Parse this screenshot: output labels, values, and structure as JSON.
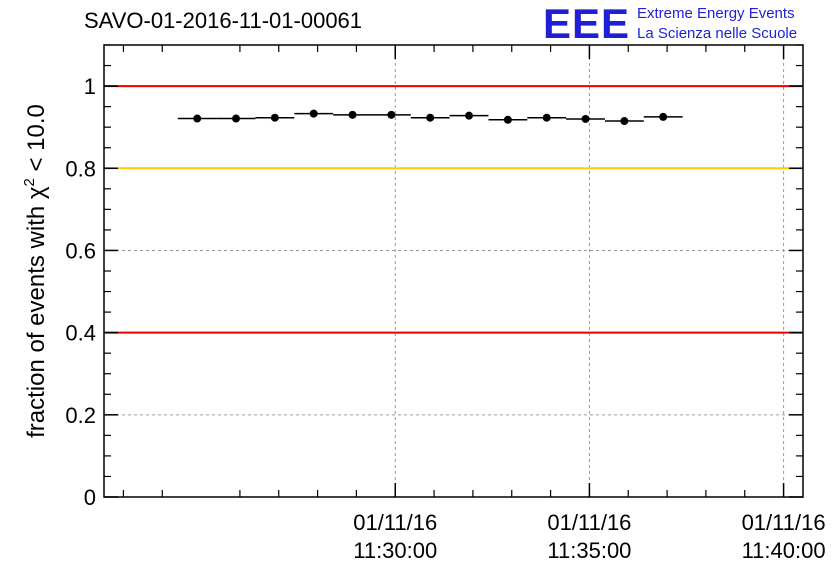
{
  "chart_data": {
    "type": "scatter",
    "title": "SAVO-01-2016-11-01-00061",
    "ylabel": {
      "prefix": "fraction of events with ",
      "chi": "χ",
      "exponent": "2",
      "suffix": " < 10.0"
    },
    "xlabel": "",
    "ylim": [
      0,
      1.1
    ],
    "y_ticks": [
      0,
      0.2,
      0.4,
      0.6,
      0.8,
      1
    ],
    "y_tick_labels": [
      "0",
      "0.2",
      "0.4",
      "0.6",
      "0.8",
      "1"
    ],
    "x_range_minutes": [
      -7.5,
      10.5
    ],
    "x_ticks": [
      {
        "minute": 0,
        "date": "01/11/16",
        "time": "11:30:00"
      },
      {
        "minute": 5,
        "date": "01/11/16",
        "time": "11:35:00"
      },
      {
        "minute": 10,
        "date": "01/11/16",
        "time": "11:40:00"
      }
    ],
    "x_minor_step_minutes": 1,
    "reference_lines": [
      {
        "y": 1.0,
        "color": "#e60000"
      },
      {
        "y": 0.8,
        "color": "#ffcc00"
      },
      {
        "y": 0.4,
        "color": "#e60000"
      }
    ],
    "grid": true,
    "series": [
      {
        "name": "fraction",
        "bin_width_minutes": 1,
        "x_minutes": [
          -7.0,
          -6.0,
          -5.0,
          -4.0,
          -3.0,
          -2.0,
          -1.0,
          0.0,
          1.0,
          2.0,
          3.0,
          4.0,
          5.0,
          6.0,
          7.0,
          8.0,
          9.0,
          10.0
        ],
        "points": [
          {
            "x": -5.1,
            "y": 0.921
          },
          {
            "x": -4.1,
            "y": 0.921
          },
          {
            "x": -3.1,
            "y": 0.923
          },
          {
            "x": -2.1,
            "y": 0.933
          },
          {
            "x": -1.1,
            "y": 0.93
          },
          {
            "x": -0.1,
            "y": 0.93
          },
          {
            "x": 0.9,
            "y": 0.923
          },
          {
            "x": 1.9,
            "y": 0.928
          },
          {
            "x": 2.9,
            "y": 0.918
          },
          {
            "x": 3.9,
            "y": 0.923
          },
          {
            "x": 4.9,
            "y": 0.92
          },
          {
            "x": 5.9,
            "y": 0.915
          },
          {
            "x": 6.9,
            "y": 0.925
          }
        ]
      }
    ]
  },
  "logo": {
    "mark": "EEE",
    "line1": "Extreme Energy Events",
    "line2": "La Scienza nelle Scuole",
    "color": "#1f1fd6"
  }
}
